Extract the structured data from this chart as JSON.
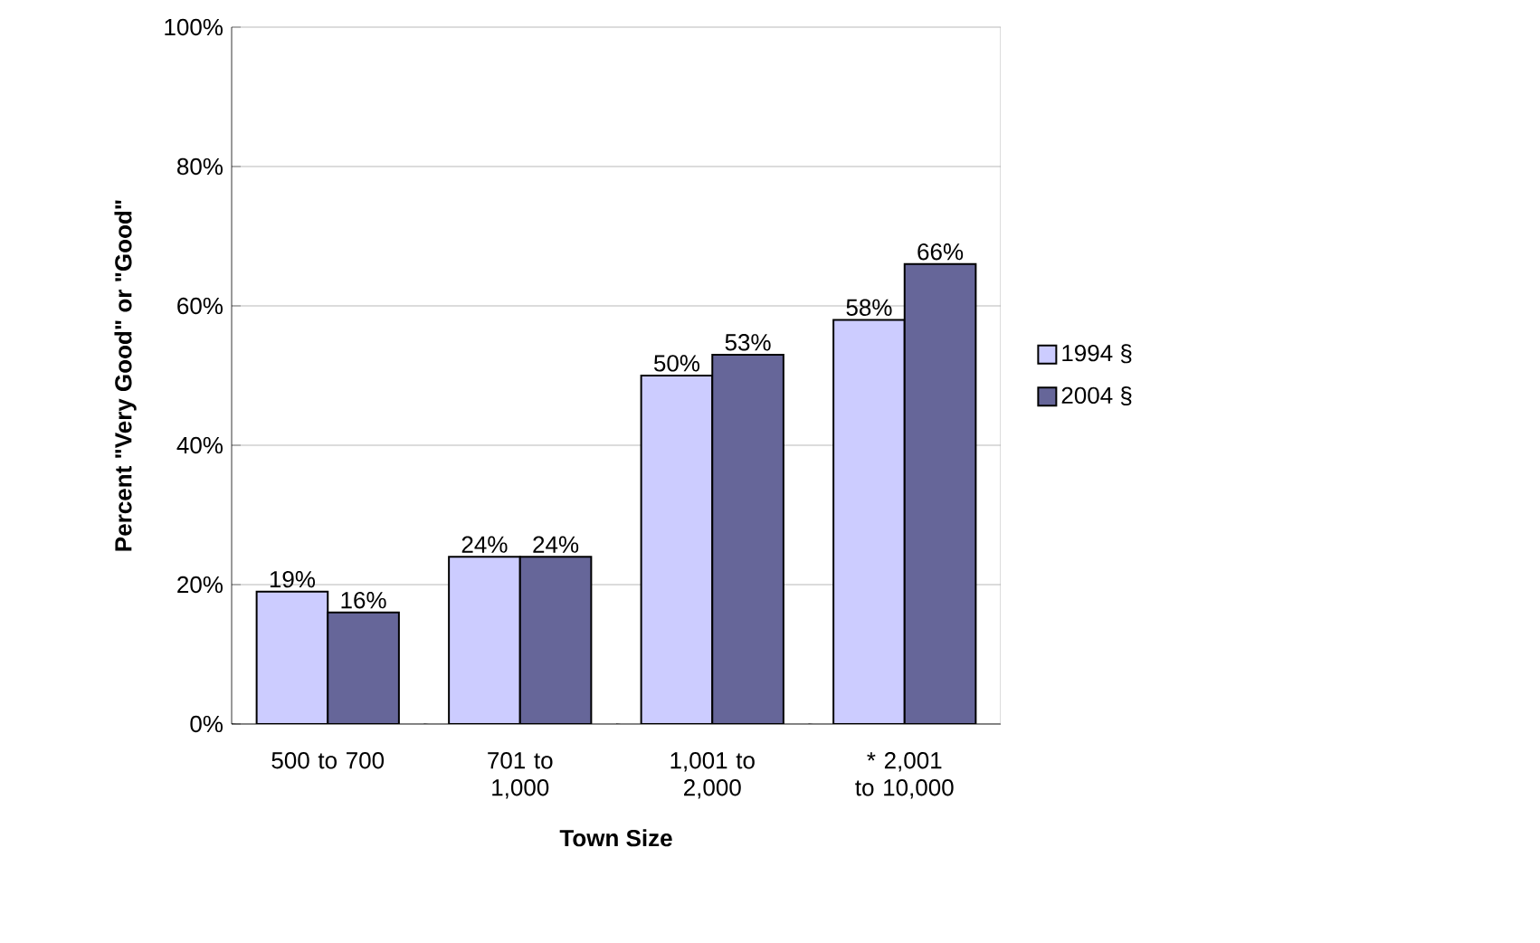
{
  "chart_data": {
    "type": "bar",
    "xlabel": "Town Size",
    "ylabel": "Percent \"Very Good\" or \"Good\"",
    "categories": [
      "500 to 700",
      "701 to 1,000",
      "1,001 to 2,000",
      "* 2,001 to 10,000"
    ],
    "series": [
      {
        "name": "1994 §",
        "color": "#ccccff",
        "values": [
          19,
          24,
          50,
          58
        ],
        "value_labels": [
          "19%",
          "24%",
          "50%",
          "58%"
        ]
      },
      {
        "name": "2004 §",
        "color": "#666699",
        "values": [
          16,
          24,
          53,
          66
        ],
        "value_labels": [
          "16%",
          "24%",
          "53%",
          "66%"
        ]
      }
    ],
    "ylim": [
      0,
      100
    ],
    "yticks": [
      {
        "value": 0,
        "label": "0%"
      },
      {
        "value": 20,
        "label": "20%"
      },
      {
        "value": 40,
        "label": "40%"
      },
      {
        "value": 60,
        "label": "60%"
      },
      {
        "value": 80,
        "label": "80%"
      },
      {
        "value": 100,
        "label": "100%"
      }
    ],
    "grid": "y",
    "legend": "right"
  }
}
